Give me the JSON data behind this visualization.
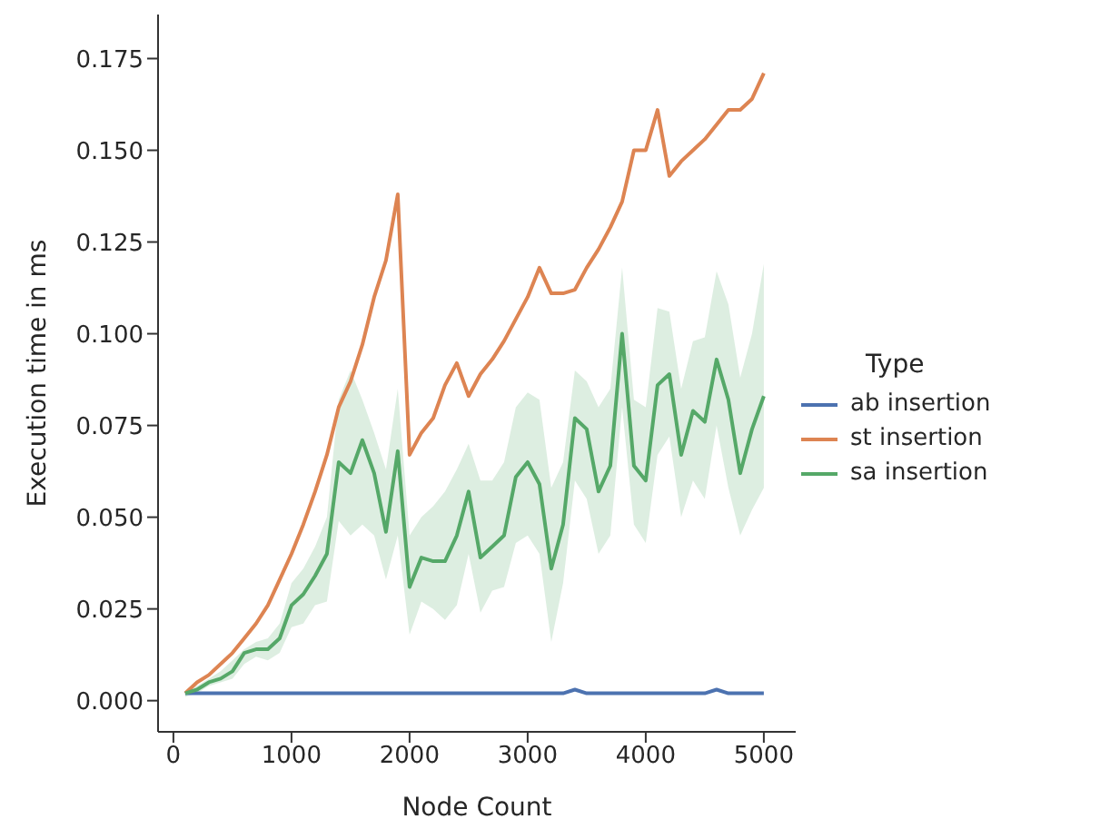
{
  "chart_data": {
    "type": "line",
    "xlabel": "Node Count",
    "ylabel": "Execution time in ms",
    "legend_title": "Type",
    "legend": "right",
    "marker": "none",
    "line_style": "solid",
    "x": [
      100,
      200,
      300,
      400,
      500,
      600,
      700,
      800,
      900,
      1000,
      1100,
      1200,
      1300,
      1400,
      1500,
      1600,
      1700,
      1800,
      1900,
      2000,
      2100,
      2200,
      2300,
      2400,
      2500,
      2600,
      2700,
      2800,
      2900,
      3000,
      3100,
      3200,
      3300,
      3400,
      3500,
      3600,
      3700,
      3800,
      3900,
      4000,
      4100,
      4200,
      4300,
      4400,
      4500,
      4600,
      4700,
      4800,
      4900,
      5000
    ],
    "xlim": [
      -130,
      5270
    ],
    "xticks": [
      0,
      1000,
      2000,
      3000,
      4000,
      5000
    ],
    "ylim": [
      -0.0085,
      0.187
    ],
    "yticks": [
      {
        "value": 0,
        "label": "0.000"
      },
      {
        "value": 0.025,
        "label": "0.025"
      },
      {
        "value": 0.05,
        "label": "0.050"
      },
      {
        "value": 0.075,
        "label": "0.075"
      },
      {
        "value": 0.1,
        "label": "0.100"
      },
      {
        "value": 0.125,
        "label": "0.125"
      },
      {
        "value": 0.15,
        "label": "0.150"
      },
      {
        "value": 0.175,
        "label": "0.175"
      }
    ],
    "series": [
      {
        "name": "ab insertion",
        "color": "#4c72b0",
        "values": [
          0.002,
          0.002,
          0.002,
          0.002,
          0.002,
          0.002,
          0.002,
          0.002,
          0.002,
          0.002,
          0.002,
          0.002,
          0.002,
          0.002,
          0.002,
          0.002,
          0.002,
          0.002,
          0.002,
          0.002,
          0.002,
          0.002,
          0.002,
          0.002,
          0.002,
          0.002,
          0.002,
          0.002,
          0.002,
          0.002,
          0.002,
          0.002,
          0.002,
          0.003,
          0.002,
          0.002,
          0.002,
          0.002,
          0.002,
          0.002,
          0.002,
          0.002,
          0.002,
          0.002,
          0.002,
          0.003,
          0.002,
          0.002,
          0.002,
          0.002
        ]
      },
      {
        "name": "st insertion",
        "color": "#dd8452",
        "values": [
          0.002,
          0.005,
          0.007,
          0.01,
          0.013,
          0.017,
          0.021,
          0.026,
          0.033,
          0.04,
          0.048,
          0.057,
          0.067,
          0.08,
          0.087,
          0.097,
          0.11,
          0.12,
          0.138,
          0.067,
          0.073,
          0.077,
          0.086,
          0.092,
          0.083,
          0.089,
          0.093,
          0.098,
          0.104,
          0.11,
          0.118,
          0.111,
          0.111,
          0.112,
          0.118,
          0.123,
          0.129,
          0.136,
          0.15,
          0.15,
          0.161,
          0.143,
          0.147,
          0.15,
          0.153,
          0.157,
          0.161,
          0.161,
          0.164,
          0.171
        ]
      },
      {
        "name": "sa insertion",
        "color": "#55a868",
        "values": [
          0.002,
          0.003,
          0.005,
          0.006,
          0.008,
          0.013,
          0.014,
          0.014,
          0.017,
          0.026,
          0.029,
          0.034,
          0.04,
          0.065,
          0.062,
          0.071,
          0.062,
          0.046,
          0.068,
          0.031,
          0.039,
          0.038,
          0.038,
          0.045,
          0.057,
          0.039,
          0.042,
          0.045,
          0.061,
          0.065,
          0.059,
          0.036,
          0.048,
          0.077,
          0.074,
          0.057,
          0.064,
          0.1,
          0.064,
          0.06,
          0.086,
          0.089,
          0.067,
          0.079,
          0.076,
          0.093,
          0.082,
          0.062,
          0.074,
          0.083
        ],
        "lower": [
          0.001,
          0.002,
          0.004,
          0.005,
          0.006,
          0.01,
          0.012,
          0.011,
          0.013,
          0.02,
          0.021,
          0.026,
          0.027,
          0.049,
          0.045,
          0.048,
          0.045,
          0.033,
          0.045,
          0.018,
          0.027,
          0.025,
          0.022,
          0.026,
          0.04,
          0.024,
          0.03,
          0.031,
          0.043,
          0.045,
          0.04,
          0.016,
          0.032,
          0.06,
          0.055,
          0.04,
          0.045,
          0.08,
          0.048,
          0.043,
          0.067,
          0.072,
          0.05,
          0.06,
          0.055,
          0.075,
          0.058,
          0.045,
          0.052,
          0.058
        ],
        "upper": [
          0.002,
          0.004,
          0.006,
          0.008,
          0.011,
          0.014,
          0.016,
          0.017,
          0.021,
          0.032,
          0.036,
          0.042,
          0.05,
          0.082,
          0.09,
          0.082,
          0.073,
          0.063,
          0.085,
          0.045,
          0.05,
          0.053,
          0.057,
          0.063,
          0.07,
          0.06,
          0.06,
          0.065,
          0.08,
          0.084,
          0.082,
          0.058,
          0.065,
          0.09,
          0.087,
          0.08,
          0.085,
          0.118,
          0.082,
          0.08,
          0.107,
          0.106,
          0.085,
          0.098,
          0.099,
          0.117,
          0.108,
          0.088,
          0.1,
          0.119
        ]
      }
    ]
  }
}
